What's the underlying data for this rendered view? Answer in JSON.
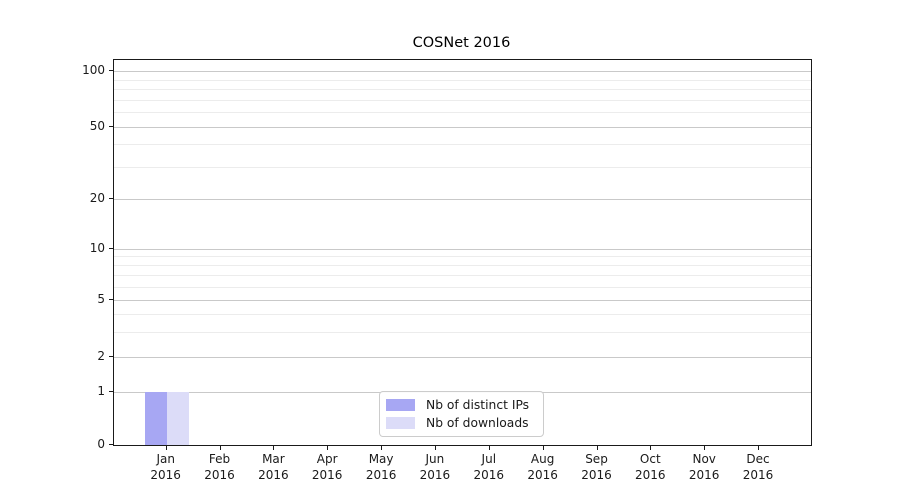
{
  "chart_data": {
    "type": "bar",
    "title": "COSNet 2016",
    "categories": [
      {
        "month": "Jan",
        "year": "2016"
      },
      {
        "month": "Feb",
        "year": "2016"
      },
      {
        "month": "Mar",
        "year": "2016"
      },
      {
        "month": "Apr",
        "year": "2016"
      },
      {
        "month": "May",
        "year": "2016"
      },
      {
        "month": "Jun",
        "year": "2016"
      },
      {
        "month": "Jul",
        "year": "2016"
      },
      {
        "month": "Aug",
        "year": "2016"
      },
      {
        "month": "Sep",
        "year": "2016"
      },
      {
        "month": "Oct",
        "year": "2016"
      },
      {
        "month": "Nov",
        "year": "2016"
      },
      {
        "month": "Dec",
        "year": "2016"
      }
    ],
    "series": [
      {
        "name": "Nb of distinct IPs",
        "color": "#a7a7f3",
        "values": [
          1,
          0,
          0,
          0,
          0,
          0,
          0,
          0,
          0,
          0,
          0,
          0
        ]
      },
      {
        "name": "Nb of downloads",
        "color": "#dcdcf8",
        "values": [
          1,
          0,
          0,
          0,
          0,
          0,
          0,
          0,
          0,
          0,
          0,
          0
        ]
      }
    ],
    "yaxis": {
      "scale": "log-like",
      "major_ticks": [
        0,
        1,
        2,
        5,
        10,
        20,
        50,
        100
      ],
      "minor_gridlines": [
        3,
        4,
        6,
        7,
        8,
        9,
        30,
        40,
        60,
        70,
        80,
        90
      ],
      "ylim_top_approx": 115
    },
    "xlabel": "",
    "ylabel": "",
    "grid": true,
    "legend": {
      "position": "lower center",
      "entries": [
        "Nb of distinct IPs",
        "Nb of downloads"
      ]
    },
    "colors": {
      "major_grid": "#c9c9c9",
      "minor_grid": "#ececec",
      "spine": "#1a1a1a",
      "background": "#ffffff"
    }
  }
}
